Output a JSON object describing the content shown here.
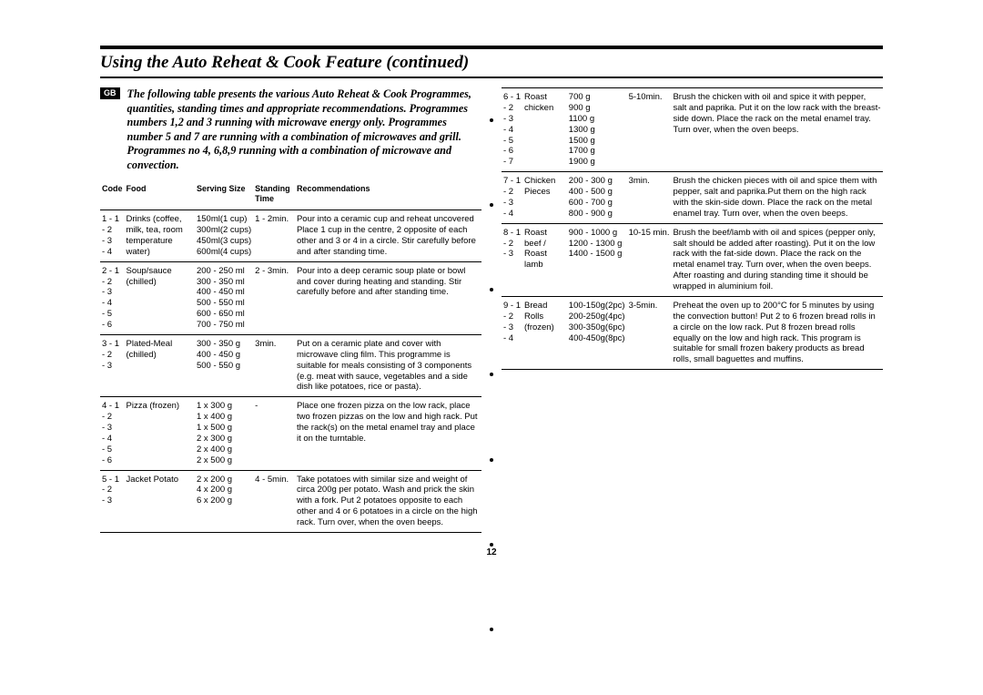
{
  "title": "Using the Auto Reheat & Cook Feature (continued)",
  "badge": "GB",
  "intro": "The following table presents the various Auto Reheat & Cook Programmes, quantities, standing times and appropriate recommendations. Programmes numbers 1,2 and 3 running with microwave energy only. Programmes number 5 and 7 are running with a combination of microwaves and grill. Programmes no 4, 6,8,9 running with a combination of microwave and convection.",
  "headers": {
    "code": "Code",
    "food": "Food",
    "size": "Serving Size",
    "time": "Standing Time",
    "rec": "Recommendations"
  },
  "left": [
    {
      "codes": [
        "1 - 1",
        "- 2",
        "- 3",
        "- 4"
      ],
      "food": "Drinks (coffee, milk, tea, room temperature water)",
      "sizes": [
        "150ml(1 cup)",
        "300ml(2 cups)",
        "450ml(3 cups)",
        "600ml(4 cups)"
      ],
      "time": "1 - 2min.",
      "rec": "Pour into a ceramic cup and reheat uncovered Place 1 cup in the centre, 2 opposite of each other and 3 or 4 in a circle. Stir carefully before and after standing time."
    },
    {
      "codes": [
        "2 - 1",
        "- 2",
        "- 3",
        "- 4",
        "- 5",
        "- 6"
      ],
      "food": "Soup/sauce (chilled)",
      "sizes": [
        "200 - 250 ml",
        "300 - 350 ml",
        "400 - 450 ml",
        "500 - 550 ml",
        "600 - 650 ml",
        "700 - 750 ml"
      ],
      "time": "2 - 3min.",
      "rec": "Pour into a deep ceramic soup plate or bowl and cover during heating and standing. Stir carefully before and after standing time."
    },
    {
      "codes": [
        "3 - 1",
        "- 2",
        "- 3"
      ],
      "food": "Plated-Meal (chilled)",
      "sizes": [
        "300 - 350 g",
        "400 - 450 g",
        "500 - 550 g"
      ],
      "time": "3min.",
      "rec": "Put on a ceramic plate and cover with microwave cling film. This programme is suitable for meals consisting of 3 components (e.g. meat with sauce, vegetables and a side dish like potatoes, rice or pasta)."
    },
    {
      "codes": [
        "4 - 1",
        "- 2",
        "- 3",
        "- 4",
        "- 5",
        "- 6"
      ],
      "food": "Pizza (frozen)",
      "sizes": [
        "1 x 300 g",
        "1 x 400 g",
        "1 x 500 g",
        "2 x 300 g",
        "2 x 400 g",
        "2 x 500 g"
      ],
      "time": "-",
      "rec": "Place one frozen pizza on the low rack, place two frozen pizzas on the low and high rack. Put the rack(s) on the metal enamel tray and place it on the turntable."
    },
    {
      "codes": [
        "5 - 1",
        "- 2",
        "- 3"
      ],
      "food": "Jacket Potato",
      "sizes": [
        "2 x 200 g",
        "4 x 200 g",
        "6 x 200 g"
      ],
      "time": "4 - 5min.",
      "rec": "Take potatoes with similar size and weight of circa 200g per potato. Wash and prick the skin with a fork. Put 2 potatoes opposite to each other and 4 or 6 potatoes in a circle on the high rack. Turn over, when the oven beeps."
    }
  ],
  "right": [
    {
      "codes": [
        "6 - 1",
        "- 2",
        "- 3",
        "- 4",
        "- 5",
        "- 6",
        "- 7"
      ],
      "food": "Roast chicken",
      "sizes": [
        "700 g",
        "900 g",
        "1100 g",
        "1300 g",
        "1500 g",
        "1700 g",
        "1900 g"
      ],
      "time": "5-10min.",
      "rec": "Brush the chicken with oil and spice it with pepper, salt and paprika. Put it on the low rack with the breast-side down. Place the rack on the metal enamel tray. Turn over, when the oven beeps."
    },
    {
      "codes": [
        "7 - 1",
        "- 2",
        "- 3",
        "- 4"
      ],
      "food": "Chicken Pieces",
      "sizes": [
        "200 - 300 g",
        "400 - 500 g",
        "600 - 700 g",
        "800 - 900 g"
      ],
      "time": "3min.",
      "rec": "Brush the chicken pieces with oil and spice them with pepper, salt and paprika.Put them on the high rack with the skin-side down. Place the rack on the metal enamel tray. Turn over, when the oven beeps."
    },
    {
      "codes": [
        "8 - 1",
        "- 2",
        "- 3"
      ],
      "food": "Roast beef / Roast lamb",
      "sizes": [
        "900 - 1000 g",
        "1200 - 1300 g",
        "1400 - 1500 g"
      ],
      "time": "10-15 min.",
      "rec": "Brush the beef/lamb with oil and spices (pepper only, salt should be added after roasting). Put it on the low rack with the fat-side down. Place the rack on the metal enamel tray. Turn over, when the oven beeps. After roasting and during standing time it should be wrapped in aluminium foil."
    },
    {
      "codes": [
        "9 - 1",
        "- 2",
        "- 3",
        "- 4"
      ],
      "food": "Bread Rolls (frozen)",
      "sizes": [
        "100-150g(2pc)",
        "200-250g(4pc)",
        "300-350g(6pc)",
        "400-450g(8pc)"
      ],
      "time": "3-5min.",
      "rec": "Preheat the oven up to 200°C for 5 minutes by using the convection button! Put 2 to 6 frozen bread rolls in a circle on the low rack. Put 8 frozen bread rolls equally on the low and high rack. This program is suitable for small frozen bakery products as bread rolls, small baguettes and muffins."
    }
  ],
  "pagenum": "12",
  "colors": {
    "text": "#000000",
    "bg": "#ffffff"
  }
}
